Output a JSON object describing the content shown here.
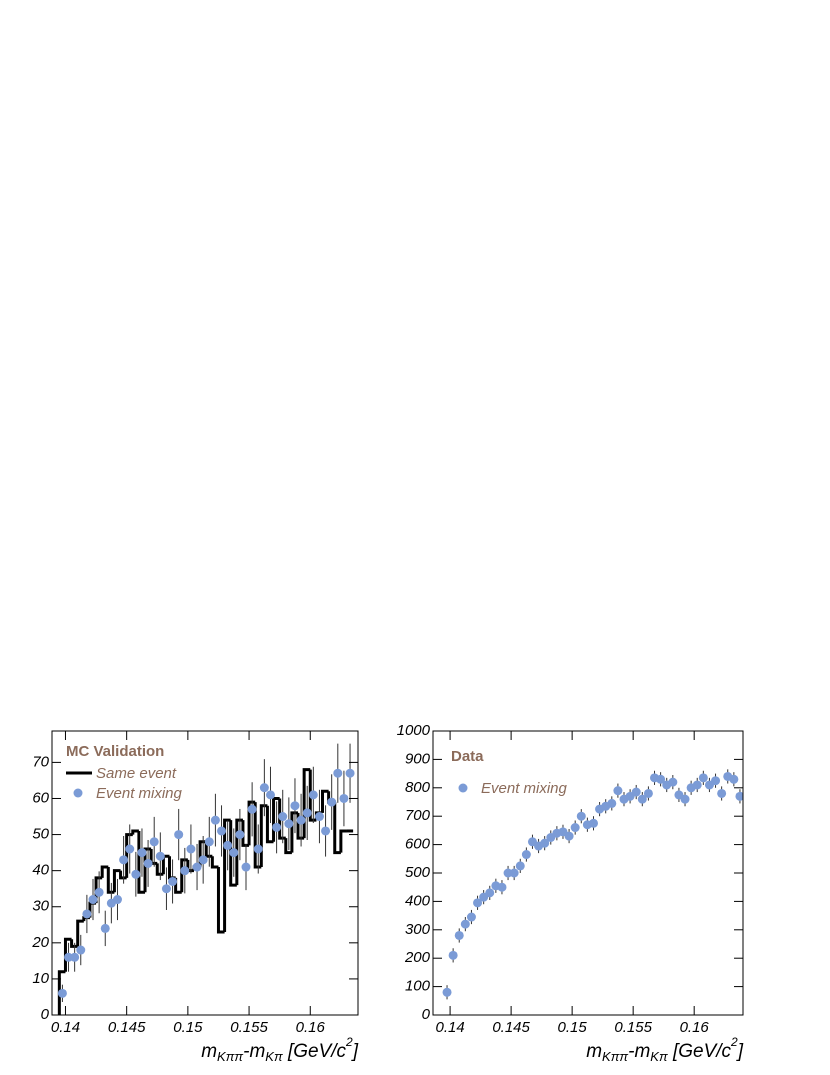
{
  "chart_data": [
    {
      "type": "histogram",
      "title": "MC Validation",
      "text_color": "#8b6b5a",
      "xlabel_parts": [
        "m",
        "Kππ",
        "-m",
        "Kπ",
        " [GeV/c",
        "2",
        "]"
      ],
      "xlim": [
        0.1389,
        0.1639
      ],
      "xticks": [
        0.14,
        0.145,
        0.15,
        0.155,
        0.16
      ],
      "ylim": [
        0,
        78.7
      ],
      "yticks": [
        0,
        10,
        20,
        30,
        40,
        50,
        60,
        70
      ],
      "series": [
        {
          "name": "Same event",
          "type": "step",
          "color": "#000000",
          "bins": [
            0.1395,
            0.14,
            0.1405,
            0.141,
            0.1415,
            0.142,
            0.1425,
            0.143,
            0.1435,
            0.144,
            0.1445,
            0.145,
            0.1455,
            0.146,
            0.1465,
            0.147,
            0.1475,
            0.148,
            0.1485,
            0.149,
            0.1495,
            0.15,
            0.1505,
            0.151,
            0.1515,
            0.152,
            0.1525,
            0.153,
            0.1535,
            0.154,
            0.1545,
            0.155,
            0.1555,
            0.156,
            0.1565,
            0.157,
            0.1575,
            0.158,
            0.1585,
            0.159,
            0.1595,
            0.16,
            0.1605,
            0.161,
            0.1615,
            0.162,
            0.1625,
            0.163,
            0.1635
          ],
          "values": [
            12,
            21,
            19,
            26,
            27,
            31,
            38,
            41,
            34,
            40,
            38,
            50,
            51,
            34,
            46,
            42,
            39,
            44,
            38,
            34,
            43,
            40,
            41,
            48,
            44,
            41,
            23,
            54,
            36,
            54,
            47,
            59,
            41,
            58,
            48,
            60,
            49,
            45,
            56,
            49,
            68,
            54,
            56,
            62,
            59,
            45,
            51,
            51
          ]
        },
        {
          "name": "Event mixing",
          "type": "errorbar",
          "color": "#7b9bd6",
          "x": [
            0.13975,
            0.14025,
            0.14075,
            0.14125,
            0.14175,
            0.14225,
            0.14275,
            0.14325,
            0.14375,
            0.14425,
            0.14475,
            0.14525,
            0.14575,
            0.14625,
            0.14675,
            0.14725,
            0.14775,
            0.14825,
            0.14875,
            0.14925,
            0.14975,
            0.15025,
            0.15075,
            0.15125,
            0.15175,
            0.15225,
            0.15275,
            0.15325,
            0.15375,
            0.15425,
            0.15475,
            0.15525,
            0.15575,
            0.15625,
            0.15675,
            0.15725,
            0.15775,
            0.15825,
            0.15875,
            0.15925,
            0.15975,
            0.16025,
            0.16075,
            0.16125,
            0.16175,
            0.16225,
            0.16275,
            0.16325
          ],
          "values": [
            6,
            16,
            16,
            18,
            28,
            32,
            34,
            24,
            31,
            32,
            43,
            46,
            39,
            45,
            42,
            48,
            44,
            35,
            37,
            50,
            40,
            46,
            41,
            43,
            48,
            54,
            51,
            47,
            45,
            50,
            41,
            57,
            46,
            63,
            61,
            52,
            55,
            53,
            58,
            54,
            56,
            61,
            55,
            51,
            59,
            67,
            60,
            67
          ],
          "errors": [
            2.4,
            4,
            4,
            4.2,
            5.3,
            5.7,
            5.8,
            4.9,
            5.6,
            5.7,
            6.6,
            6.8,
            6.2,
            6.7,
            6.5,
            6.9,
            6.6,
            5.9,
            6.1,
            7.1,
            6.3,
            6.8,
            6.4,
            6.6,
            6.9,
            7.3,
            7.1,
            6.9,
            6.7,
            7.1,
            6.4,
            7.5,
            6.8,
            7.9,
            7.8,
            7.2,
            7.4,
            7.3,
            7.6,
            7.3,
            7.5,
            7.8,
            7.4,
            7.1,
            7.7,
            8.2,
            7.7,
            8.2
          ]
        }
      ]
    },
    {
      "type": "scatter",
      "title": "Data",
      "text_color": "#8b6b5a",
      "xlabel_parts": [
        "m",
        "Kππ",
        "-m",
        "Kπ",
        " [GeV/c",
        "2",
        "]"
      ],
      "xlim": [
        0.1386,
        0.164
      ],
      "xticks": [
        0.14,
        0.145,
        0.15,
        0.155,
        0.16
      ],
      "ylim": [
        0,
        1000
      ],
      "yticks": [
        0,
        100,
        200,
        300,
        400,
        500,
        600,
        700,
        800,
        900,
        1000
      ],
      "series": [
        {
          "name": "Event mixing",
          "type": "errorbar",
          "color": "#7b9bd6",
          "x": [
            0.13975,
            0.14025,
            0.14075,
            0.14125,
            0.14175,
            0.14225,
            0.14275,
            0.14325,
            0.14375,
            0.14425,
            0.14475,
            0.14525,
            0.14575,
            0.14625,
            0.14675,
            0.14725,
            0.14775,
            0.14825,
            0.14875,
            0.14925,
            0.14975,
            0.15025,
            0.15075,
            0.15125,
            0.15175,
            0.15225,
            0.15275,
            0.15325,
            0.15375,
            0.15425,
            0.15475,
            0.15525,
            0.15575,
            0.15625,
            0.15675,
            0.15725,
            0.15775,
            0.15825,
            0.15875,
            0.15925,
            0.15975,
            0.16025,
            0.16075,
            0.16125,
            0.16175,
            0.16225,
            0.16275,
            0.16325,
            0.16375
          ],
          "values": [
            80,
            210,
            280,
            320,
            345,
            395,
            415,
            430,
            455,
            450,
            500,
            500,
            525,
            565,
            610,
            595,
            605,
            625,
            640,
            645,
            630,
            660,
            700,
            670,
            675,
            725,
            735,
            745,
            790,
            760,
            770,
            785,
            760,
            780,
            835,
            830,
            810,
            820,
            775,
            760,
            800,
            810,
            835,
            810,
            825,
            780,
            840,
            830,
            770
          ],
          "errors": [
            25,
            25,
            25,
            25,
            25,
            25,
            25,
            25,
            25,
            25,
            25,
            25,
            25,
            25,
            25,
            25,
            25,
            25,
            25,
            25,
            25,
            25,
            25,
            25,
            25,
            25,
            25,
            25,
            25,
            25,
            25,
            25,
            25,
            25,
            25,
            25,
            25,
            25,
            25,
            25,
            25,
            25,
            25,
            25,
            25,
            25,
            25,
            25,
            25
          ]
        }
      ]
    }
  ]
}
